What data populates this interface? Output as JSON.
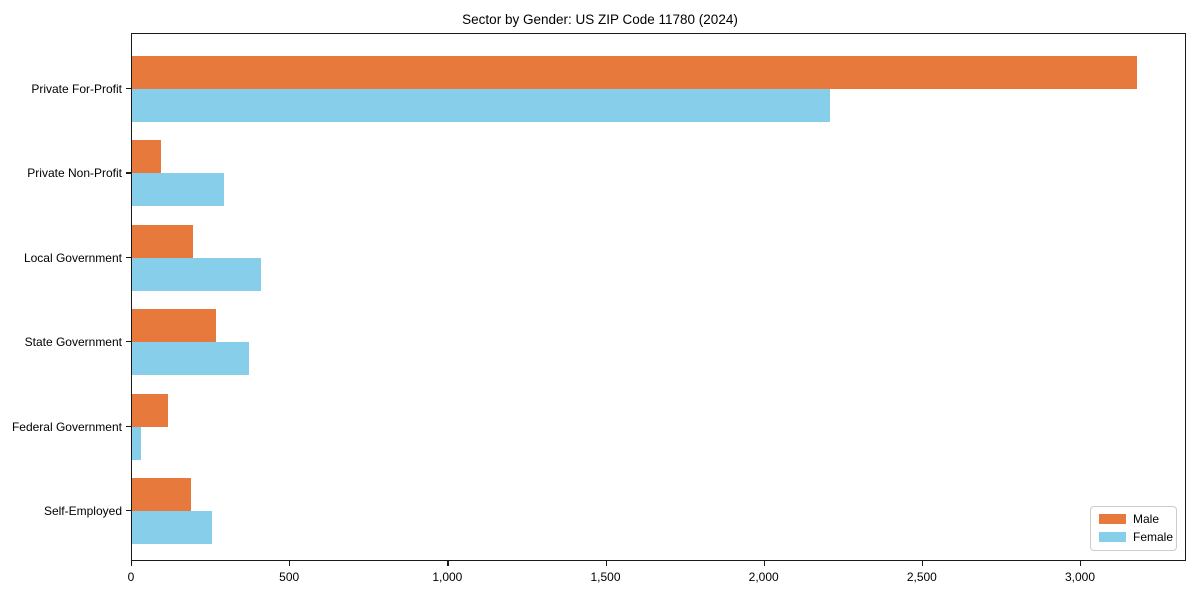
{
  "title": "Sector by Gender: US ZIP Code 11780 (2024)",
  "chart_data": {
    "type": "bar",
    "orientation": "horizontal",
    "title": "Sector by Gender: US ZIP Code 11780 (2024)",
    "categories": [
      "Private For-Profit",
      "Private Non-Profit",
      "Local Government",
      "State Government",
      "Federal Government",
      "Self-Employed"
    ],
    "series": [
      {
        "name": "Male",
        "color": "#e8793d",
        "values": [
          3176,
          92,
          193,
          266,
          114,
          186
        ]
      },
      {
        "name": "Female",
        "color": "#87ceeb",
        "values": [
          2206,
          291,
          408,
          370,
          28,
          253
        ]
      }
    ],
    "xlabel": "",
    "ylabel": "",
    "xlim": [
      0,
      3335
    ],
    "xticks": [
      0,
      500,
      1000,
      1500,
      2000,
      2500,
      3000
    ],
    "xtick_labels": [
      "0",
      "500",
      "1,000",
      "1,500",
      "2,000",
      "2,500",
      "3,000"
    ],
    "grid": false,
    "legend_position": "lower right"
  }
}
